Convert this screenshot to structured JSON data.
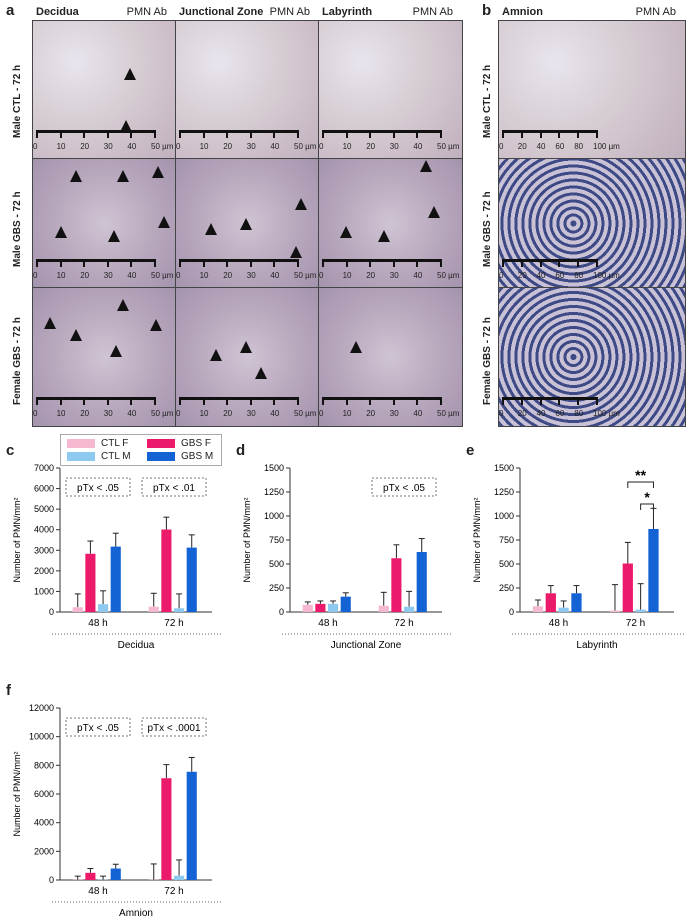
{
  "panel_labels": [
    "a",
    "b",
    "c",
    "d",
    "e",
    "f"
  ],
  "micrographs": {
    "stain": "PMN Ab",
    "columns_a": [
      "Decidua",
      "Junctional Zone",
      "Labyrinth"
    ],
    "column_b": "Amnion",
    "rows": [
      "Male CTL - 72 h",
      "Male GBS - 72 h",
      "Female GBS - 72 h"
    ],
    "scale_a": [
      "0",
      "10",
      "20",
      "30",
      "40",
      "50 µm"
    ],
    "scale_b": [
      "0",
      "20",
      "40",
      "60",
      "80",
      "100 µm"
    ]
  },
  "legend": [
    {
      "label": "CTL F",
      "color": "#f6b8d1"
    },
    {
      "label": "GBS F",
      "color": "#ec1a6b"
    },
    {
      "label": "CTL M",
      "color": "#8ec9ef"
    },
    {
      "label": "GBS M",
      "color": "#1463d4"
    }
  ],
  "y_label": "Number of PMN/mm²",
  "chart_data": [
    {
      "panel": "c",
      "type": "bar",
      "xlabel": "Decidua",
      "categories": [
        "48 h",
        "72 h"
      ],
      "ylim": [
        0,
        7000
      ],
      "yticks": [
        0,
        1000,
        2000,
        3000,
        4000,
        5000,
        6000,
        7000
      ],
      "series": [
        {
          "name": "CTL F",
          "values": [
            230,
            260
          ],
          "errors": [
            650,
            650
          ]
        },
        {
          "name": "GBS F",
          "values": [
            2830,
            4010
          ],
          "errors": [
            620,
            600
          ]
        },
        {
          "name": "CTL M",
          "values": [
            380,
            180
          ],
          "errors": [
            650,
            700
          ]
        },
        {
          "name": "GBS M",
          "values": [
            3180,
            3130
          ],
          "errors": [
            650,
            620
          ]
        }
      ],
      "annotations": [
        "pTx < .05",
        "pTx < .01"
      ]
    },
    {
      "panel": "d",
      "type": "bar",
      "xlabel": "Junctional Zone",
      "categories": [
        "48 h",
        "72 h"
      ],
      "ylim": [
        0,
        1500
      ],
      "yticks": [
        0,
        250,
        500,
        750,
        1000,
        1250,
        1500
      ],
      "series": [
        {
          "name": "CTL F",
          "values": [
            75,
            65
          ],
          "errors": [
            30,
            140
          ]
        },
        {
          "name": "GBS F",
          "values": [
            85,
            560
          ],
          "errors": [
            30,
            140
          ]
        },
        {
          "name": "CTL M",
          "values": [
            85,
            55
          ],
          "errors": [
            30,
            160
          ]
        },
        {
          "name": "GBS M",
          "values": [
            160,
            625
          ],
          "errors": [
            40,
            140
          ]
        }
      ],
      "annotations": [
        null,
        "pTx < .05"
      ]
    },
    {
      "panel": "e",
      "type": "bar",
      "xlabel": "Labyrinth",
      "categories": [
        "48 h",
        "72 h"
      ],
      "ylim": [
        0,
        1500
      ],
      "yticks": [
        0,
        250,
        500,
        750,
        1000,
        1250,
        1500
      ],
      "series": [
        {
          "name": "CTL F",
          "values": [
            60,
            15
          ],
          "errors": [
            65,
            270
          ]
        },
        {
          "name": "GBS F",
          "values": [
            195,
            505
          ],
          "errors": [
            80,
            220
          ]
        },
        {
          "name": "CTL M",
          "values": [
            45,
            25
          ],
          "errors": [
            70,
            270
          ]
        },
        {
          "name": "GBS M",
          "values": [
            195,
            865
          ],
          "errors": [
            80,
            215
          ]
        }
      ],
      "significance": [
        "**",
        "*"
      ]
    },
    {
      "panel": "f",
      "type": "bar",
      "xlabel": "Amnion",
      "categories": [
        "48 h",
        "72 h"
      ],
      "ylim": [
        0,
        12000
      ],
      "yticks": [
        0,
        2000,
        4000,
        6000,
        8000,
        10000,
        12000
      ],
      "series": [
        {
          "name": "CTL F",
          "values": [
            20,
            20
          ],
          "errors": [
            250,
            1100
          ]
        },
        {
          "name": "GBS F",
          "values": [
            500,
            7100
          ],
          "errors": [
            300,
            950
          ]
        },
        {
          "name": "CTL M",
          "values": [
            20,
            300
          ],
          "errors": [
            250,
            1100
          ]
        },
        {
          "name": "GBS M",
          "values": [
            800,
            7550
          ],
          "errors": [
            300,
            1000
          ]
        }
      ],
      "annotations": [
        "pTx < .05",
        "pTx < .0001"
      ]
    }
  ]
}
